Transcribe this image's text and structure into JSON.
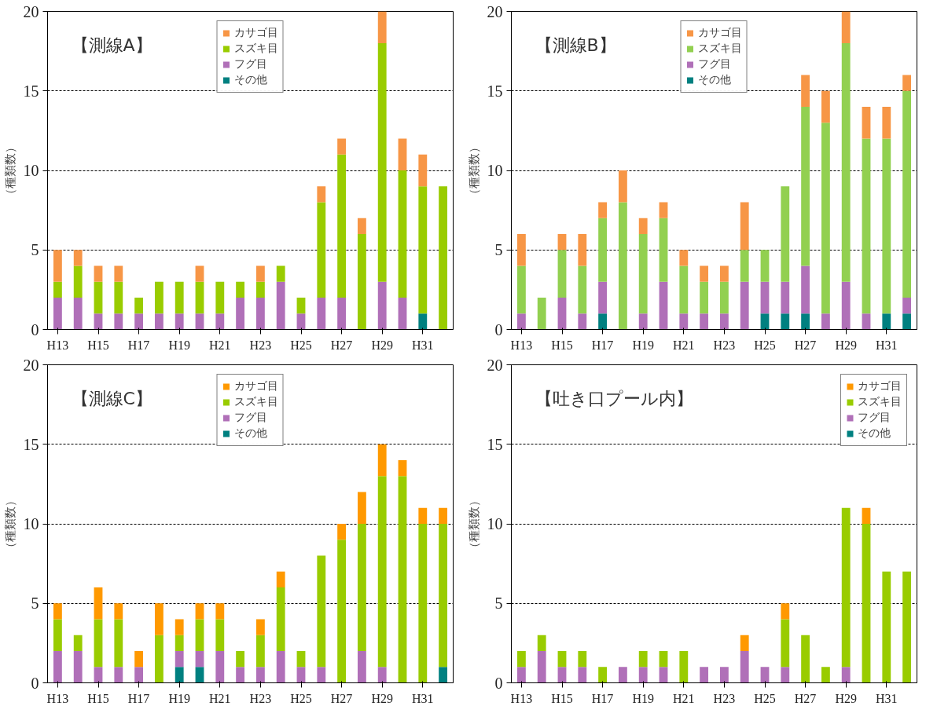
{
  "chart_data": [
    {
      "type": "bar",
      "stacked": true,
      "title": "【測線A】",
      "ylabel": "（種類数）",
      "categories": [
        "H13",
        null,
        "H15",
        null,
        "H17",
        null,
        "H19",
        null,
        "H21",
        null,
        "H23",
        null,
        "H25",
        null,
        "H27",
        null,
        "H29",
        null,
        "H31",
        null
      ],
      "ylim": [
        0,
        20
      ],
      "yticks": [
        0,
        5,
        10,
        15,
        20
      ],
      "grid": "y",
      "legend": "top",
      "series": [
        {
          "name": "その他",
          "color": "#008080",
          "values": [
            0,
            0,
            0,
            0,
            0,
            0,
            0,
            0,
            0,
            0,
            0,
            0,
            0,
            0,
            0,
            0,
            0,
            0,
            1,
            0
          ]
        },
        {
          "name": "フグ目",
          "color": "#b070b8",
          "values": [
            2,
            2,
            1,
            1,
            1,
            1,
            1,
            1,
            1,
            2,
            2,
            3,
            1,
            2,
            2,
            0,
            3,
            2,
            0,
            0
          ]
        },
        {
          "name": "スズキ目",
          "color": "#99cc00",
          "values": [
            1,
            2,
            2,
            2,
            1,
            2,
            2,
            2,
            2,
            1,
            1,
            1,
            1,
            6,
            9,
            6,
            15,
            8,
            8,
            9
          ]
        },
        {
          "name": "カサゴ目",
          "color": "#f79646",
          "values": [
            2,
            1,
            1,
            1,
            0,
            0,
            0,
            1,
            0,
            0,
            1,
            0,
            0,
            1,
            1,
            1,
            2,
            2,
            2,
            0
          ]
        }
      ]
    },
    {
      "type": "bar",
      "stacked": true,
      "title": "【測線B】",
      "ylabel": "（種類数）",
      "categories": [
        "H13",
        null,
        "H15",
        null,
        "H17",
        null,
        "H19",
        null,
        "H21",
        null,
        "H23",
        null,
        "H25",
        null,
        "H27",
        null,
        "H29",
        null,
        "H31",
        null
      ],
      "ylim": [
        0,
        20
      ],
      "yticks": [
        0,
        5,
        10,
        15,
        20
      ],
      "grid": "y",
      "legend": "top",
      "series": [
        {
          "name": "その他",
          "color": "#008080",
          "values": [
            0,
            0,
            0,
            0,
            1,
            0,
            0,
            0,
            0,
            0,
            0,
            0,
            1,
            1,
            1,
            0,
            0,
            0,
            1,
            1
          ]
        },
        {
          "name": "フグ目",
          "color": "#b070b8",
          "values": [
            1,
            0,
            2,
            1,
            2,
            0,
            1,
            3,
            1,
            1,
            1,
            3,
            2,
            2,
            3,
            1,
            3,
            1,
            0,
            1
          ]
        },
        {
          "name": "スズキ目",
          "color": "#92d050",
          "values": [
            3,
            2,
            3,
            3,
            4,
            8,
            5,
            4,
            3,
            2,
            2,
            2,
            2,
            6,
            10,
            12,
            15,
            11,
            11,
            13
          ]
        },
        {
          "name": "カサゴ目",
          "color": "#f79646",
          "values": [
            2,
            0,
            1,
            2,
            1,
            2,
            1,
            1,
            1,
            1,
            1,
            3,
            0,
            0,
            2,
            2,
            2,
            2,
            2,
            1
          ]
        }
      ]
    },
    {
      "type": "bar",
      "stacked": true,
      "title": "【測線C】",
      "ylabel": "（種類数）",
      "categories": [
        "H13",
        null,
        "H15",
        null,
        "H17",
        null,
        "H19",
        null,
        "H21",
        null,
        "H23",
        null,
        "H25",
        null,
        "H27",
        null,
        "H29",
        null,
        "H31",
        null
      ],
      "ylim": [
        0,
        20
      ],
      "yticks": [
        0,
        5,
        10,
        15,
        20
      ],
      "grid": "y",
      "legend": "top",
      "series": [
        {
          "name": "その他",
          "color": "#008080",
          "values": [
            0,
            0,
            0,
            0,
            0,
            0,
            1,
            1,
            0,
            0,
            0,
            0,
            0,
            0,
            0,
            0,
            0,
            0,
            0,
            1
          ]
        },
        {
          "name": "フグ目",
          "color": "#b070b8",
          "values": [
            2,
            2,
            1,
            1,
            1,
            0,
            1,
            1,
            2,
            1,
            1,
            2,
            1,
            1,
            0,
            2,
            1,
            0,
            0,
            0
          ]
        },
        {
          "name": "スズキ目",
          "color": "#99cc00",
          "values": [
            2,
            1,
            3,
            3,
            0,
            3,
            1,
            2,
            2,
            1,
            2,
            4,
            1,
            7,
            9,
            8,
            12,
            13,
            10,
            9
          ]
        },
        {
          "name": "カサゴ目",
          "color": "#ff9900",
          "values": [
            1,
            0,
            2,
            1,
            1,
            2,
            1,
            1,
            1,
            0,
            1,
            1,
            0,
            0,
            1,
            2,
            2,
            1,
            1,
            1
          ]
        }
      ]
    },
    {
      "type": "bar",
      "stacked": true,
      "title": "【吐き口プール内】",
      "ylabel": "（種類数）",
      "categories": [
        "H13",
        null,
        "H15",
        null,
        "H17",
        null,
        "H19",
        null,
        "H21",
        null,
        "H23",
        null,
        "H25",
        null,
        "H27",
        null,
        "H29",
        null,
        "H31",
        null
      ],
      "ylim": [
        0,
        20
      ],
      "yticks": [
        0,
        5,
        10,
        15,
        20
      ],
      "grid": "y",
      "legend": "top right",
      "series": [
        {
          "name": "その他",
          "color": "#008080",
          "values": [
            0,
            0,
            0,
            0,
            0,
            0,
            0,
            0,
            0,
            0,
            0,
            0,
            0,
            0,
            0,
            0,
            0,
            0,
            0,
            0
          ]
        },
        {
          "name": "フグ目",
          "color": "#b070b8",
          "values": [
            1,
            2,
            1,
            1,
            0,
            1,
            1,
            1,
            0,
            1,
            1,
            2,
            1,
            1,
            0,
            0,
            1,
            0,
            0,
            0
          ]
        },
        {
          "name": "スズキ目",
          "color": "#99cc00",
          "values": [
            1,
            1,
            1,
            1,
            1,
            0,
            1,
            1,
            2,
            0,
            0,
            0,
            0,
            3,
            3,
            1,
            10,
            10,
            7,
            7
          ]
        },
        {
          "name": "カサゴ目",
          "color": "#ff9900",
          "values": [
            0,
            0,
            0,
            0,
            0,
            0,
            0,
            0,
            0,
            0,
            0,
            1,
            0,
            1,
            0,
            0,
            0,
            1,
            0,
            0
          ]
        }
      ]
    }
  ]
}
